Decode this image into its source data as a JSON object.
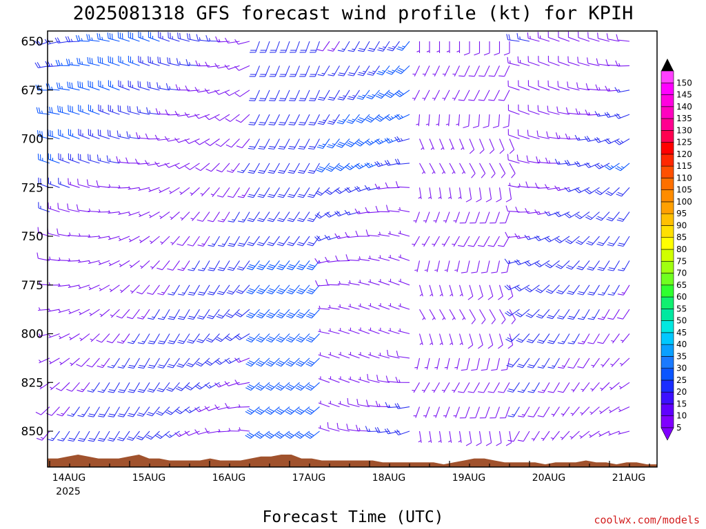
{
  "chart_data": {
    "type": "wind-barb-timeseries",
    "title": "2025081318 GFS forecast wind profile (kt) for KPIH",
    "xlabel": "Forecast Time (UTC)",
    "credit": "coolwx.com/models",
    "x_tick_labels": [
      "14AUG",
      "15AUG",
      "16AUG",
      "17AUG",
      "18AUG",
      "19AUG",
      "20AUG",
      "21AUG"
    ],
    "x_tick_sublabel": "2025",
    "x_range_hours": [
      0,
      180
    ],
    "y_tick_labels": [
      "650",
      "675",
      "700",
      "725",
      "750",
      "775",
      "800",
      "825",
      "850"
    ],
    "y_range_hpa": [
      650,
      868
    ],
    "levels_hpa": [
      650,
      662.5,
      675,
      687.5,
      700,
      712.5,
      725,
      737.5,
      750,
      762.5,
      775,
      787.5,
      800,
      812.5,
      825,
      837.5,
      850
    ],
    "time_step_hours": 3,
    "colorbar_labels": [
      "5",
      "10",
      "15",
      "20",
      "25",
      "30",
      "35",
      "40",
      "45",
      "50",
      "55",
      "60",
      "65",
      "70",
      "75",
      "80",
      "85",
      "90",
      "95",
      "100",
      "105",
      "110",
      "115",
      "120",
      "125",
      "130",
      "135",
      "140",
      "145",
      "150"
    ],
    "colorbar_colors": [
      "#8000ff",
      "#6000ff",
      "#3c10ff",
      "#1a2dff",
      "#0a55ff",
      "#1a7aff",
      "#0aa0ff",
      "#00c8ff",
      "#00e8e0",
      "#00e8a0",
      "#10f070",
      "#30ff30",
      "#70ff20",
      "#a0ff10",
      "#d0ff00",
      "#ffff00",
      "#ffe000",
      "#ffc000",
      "#ffa000",
      "#ff8c00",
      "#ff7000",
      "#ff5000",
      "#ff2800",
      "#ff0000",
      "#ff0050",
      "#ff0090",
      "#ff00c0",
      "#ff00e0",
      "#ff00ff",
      "#ff40ff"
    ],
    "terrain_color": "#a0522d",
    "barb_color": "#7a14f0",
    "grid": false,
    "colorbar_position": "right",
    "terrain_pressure_hpa": [
      864,
      864,
      863,
      862,
      863,
      864,
      864,
      864,
      863,
      862,
      864,
      864,
      865,
      865,
      865,
      865,
      864,
      865,
      865,
      865,
      864,
      863,
      863,
      862,
      862,
      864,
      864,
      865,
      865,
      865,
      865,
      865,
      865,
      866,
      866,
      866,
      866,
      866,
      866,
      867,
      866,
      865,
      864,
      864,
      865,
      866,
      866,
      866,
      866,
      867,
      866,
      866,
      866,
      865,
      866,
      866,
      867,
      866,
      866,
      867,
      867
    ]
  }
}
